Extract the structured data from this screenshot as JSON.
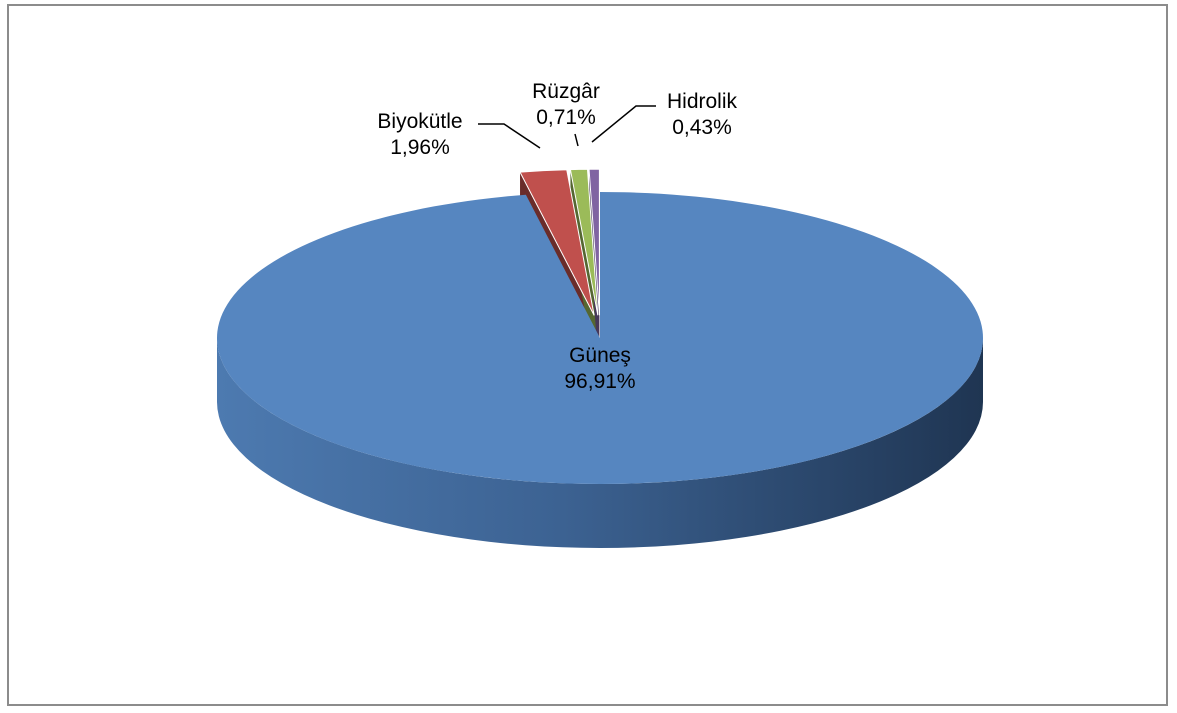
{
  "chart_data": {
    "type": "pie",
    "style": "3d-exploded",
    "title": "",
    "slices": [
      {
        "name": "Güneş",
        "value": 96.91,
        "label": "96,91%",
        "color": "#5686c0"
      },
      {
        "name": "Biyokütle",
        "value": 1.96,
        "label": "1,96%",
        "color": "#c0504d"
      },
      {
        "name": "Rüzgâr",
        "value": 0.71,
        "label": "0,71%",
        "color": "#9bbb59"
      },
      {
        "name": "Hidrolik",
        "value": 0.43,
        "label": "0,43%",
        "color": "#8064a2"
      }
    ],
    "legend": "none",
    "data_labels": "category-and-percent"
  }
}
